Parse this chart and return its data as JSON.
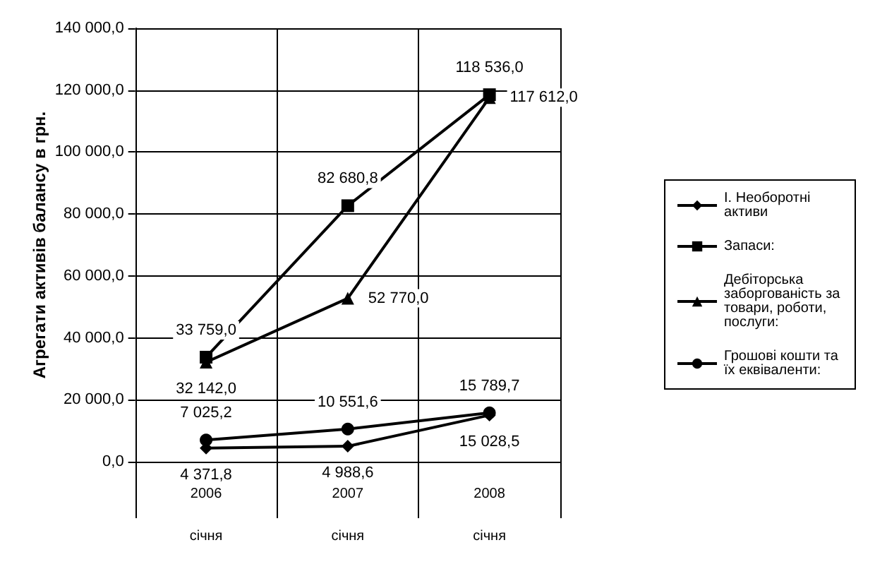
{
  "chart_data": {
    "type": "line",
    "ylabel": "Агрегати активів балансу в грн.",
    "categories": [
      "2006\nсічня",
      "2007\nсічня",
      "2008\nсічня"
    ],
    "ylim": [
      0,
      140000
    ],
    "yticks": [
      {
        "value": 0,
        "label": "0,0"
      },
      {
        "value": 20000,
        "label": "20 000,0"
      },
      {
        "value": 40000,
        "label": "40 000,0"
      },
      {
        "value": 60000,
        "label": "60 000,0"
      },
      {
        "value": 80000,
        "label": "80 000,0"
      },
      {
        "value": 100000,
        "label": "100 000,0"
      },
      {
        "value": 120000,
        "label": "120 000,0"
      },
      {
        "value": 140000,
        "label": "140 000,0"
      }
    ],
    "grid": true,
    "legend": "right",
    "series": [
      {
        "name": "І. Необоротні активи",
        "color": "#000000",
        "marker": "diamond",
        "values": [
          4371.8,
          4988.6,
          15028.5
        ],
        "value_labels": [
          "4 371,8",
          "4 988,6",
          "15 028,5"
        ]
      },
      {
        "name": "Запаси:",
        "color": "#000000",
        "marker": "square",
        "values": [
          33759.0,
          82680.8,
          118536.0
        ],
        "value_labels": [
          "33 759,0",
          "82 680,8",
          "118 536,0"
        ]
      },
      {
        "name": "Дебіторська заборгованість за товари, роботи, послуги:",
        "color": "#000000",
        "marker": "triangle",
        "values": [
          32142.0,
          52770.0,
          117612.0
        ],
        "value_labels": [
          "32 142,0",
          "52 770,0",
          "117 612,0"
        ]
      },
      {
        "name": "Грошові кошти та їх еквіваленти:",
        "color": "#000000",
        "marker": "circle",
        "values": [
          7025.2,
          10551.6,
          15789.7
        ],
        "value_labels": [
          "7 025,2",
          "10 551,6",
          "15 789,7"
        ]
      }
    ]
  }
}
